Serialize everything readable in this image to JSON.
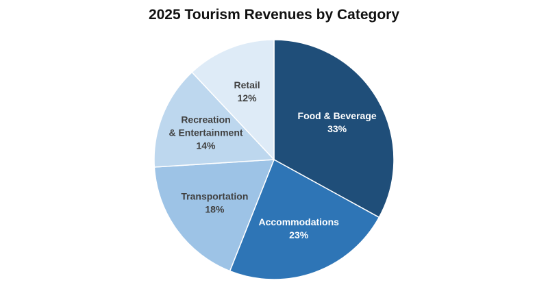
{
  "chart_data": {
    "type": "pie",
    "title": "2025 Tourism Revenues by Category",
    "slices": [
      {
        "label_lines": [
          "Food & Beverage"
        ],
        "value": 33,
        "value_label": "33%",
        "color": "#1f4e79",
        "text_color": "#ffffff"
      },
      {
        "label_lines": [
          "Accommodations"
        ],
        "value": 23,
        "value_label": "23%",
        "color": "#2e75b6",
        "text_color": "#ffffff"
      },
      {
        "label_lines": [
          "Transportation"
        ],
        "value": 18,
        "value_label": "18%",
        "color": "#9dc3e6",
        "text_color": "#404040"
      },
      {
        "label_lines": [
          "Recreation",
          "& Entertainment"
        ],
        "value": 14,
        "value_label": "14%",
        "color": "#bdd7ee",
        "text_color": "#404040"
      },
      {
        "label_lines": [
          "Retail"
        ],
        "value": 12,
        "value_label": "12%",
        "color": "#deebf7",
        "text_color": "#404040"
      }
    ],
    "start": "12 o'clock",
    "direction": "clockwise",
    "legend": "none"
  }
}
